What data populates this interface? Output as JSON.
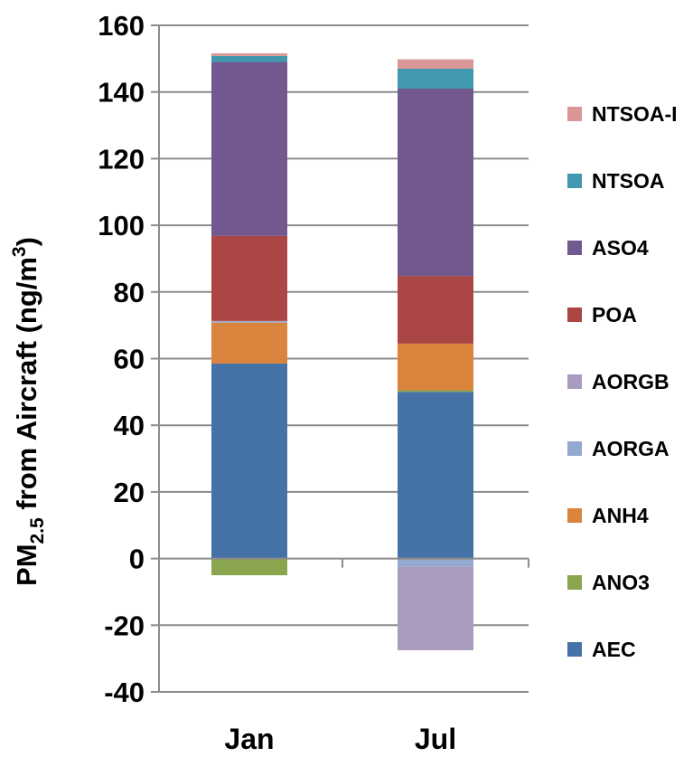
{
  "chart_data": {
    "type": "bar",
    "stacked": true,
    "categories": [
      "Jan",
      "Jul"
    ],
    "ylabel_parts": {
      "main": "PM",
      "sub": "2.5",
      "mid": " from Aircraft (ng/m",
      "sup": "3",
      "end": ")"
    },
    "xlabel": "",
    "ylim": [
      -40,
      160
    ],
    "yticks": [
      -40,
      -20,
      0,
      20,
      40,
      60,
      80,
      100,
      120,
      140,
      160
    ],
    "grid": true,
    "legend_position": "right",
    "series": [
      {
        "name": "AEC",
        "color": "#4572A7",
        "values": [
          58.5,
          50
        ]
      },
      {
        "name": "ANO3",
        "color": "#89A54E",
        "values": [
          -5,
          0.5
        ]
      },
      {
        "name": "ANH4",
        "color": "#DB843D",
        "values": [
          12.3,
          14
        ]
      },
      {
        "name": "AORGA",
        "color": "#93A9CF",
        "values": [
          0.3,
          -2.5
        ]
      },
      {
        "name": "AORGB",
        "color": "#A99BBD",
        "values": [
          0.2,
          -25
        ]
      },
      {
        "name": "POA",
        "color": "#AA4643",
        "values": [
          25.5,
          20.3
        ]
      },
      {
        "name": "ASO4",
        "color": "#71588F",
        "values": [
          52.2,
          56.2
        ]
      },
      {
        "name": "NTSOA",
        "color": "#4198AF",
        "values": [
          1.8,
          6
        ]
      },
      {
        "name": "NTSOA-I",
        "color": "#D99694",
        "values": [
          0.8,
          2.8
        ]
      }
    ]
  }
}
